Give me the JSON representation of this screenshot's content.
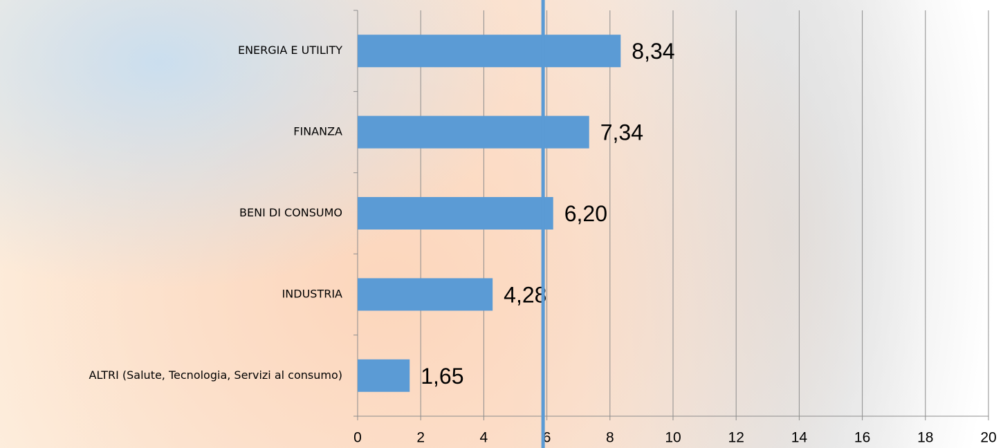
{
  "chart_data": {
    "type": "barh",
    "categories": [
      "ENERGIA E UTILITY",
      "FINANZA",
      "BENI DI CONSUMO",
      "INDUSTRIA",
      "ALTRI (Salute, Tecnologia, Servizi al consumo)"
    ],
    "values": [
      8.34,
      7.34,
      6.2,
      4.28,
      1.65
    ],
    "value_labels": [
      "8,34",
      "7,34",
      "6,20",
      "4,28",
      "1,65"
    ],
    "color": "#5b9bd5",
    "xlim": [
      0,
      20
    ],
    "xticks": [
      0,
      2,
      4,
      6,
      8,
      10,
      12,
      14,
      16,
      18,
      20
    ],
    "grid": true,
    "reference_line": {
      "value": 5.88,
      "color": "#5b9bd5"
    }
  }
}
